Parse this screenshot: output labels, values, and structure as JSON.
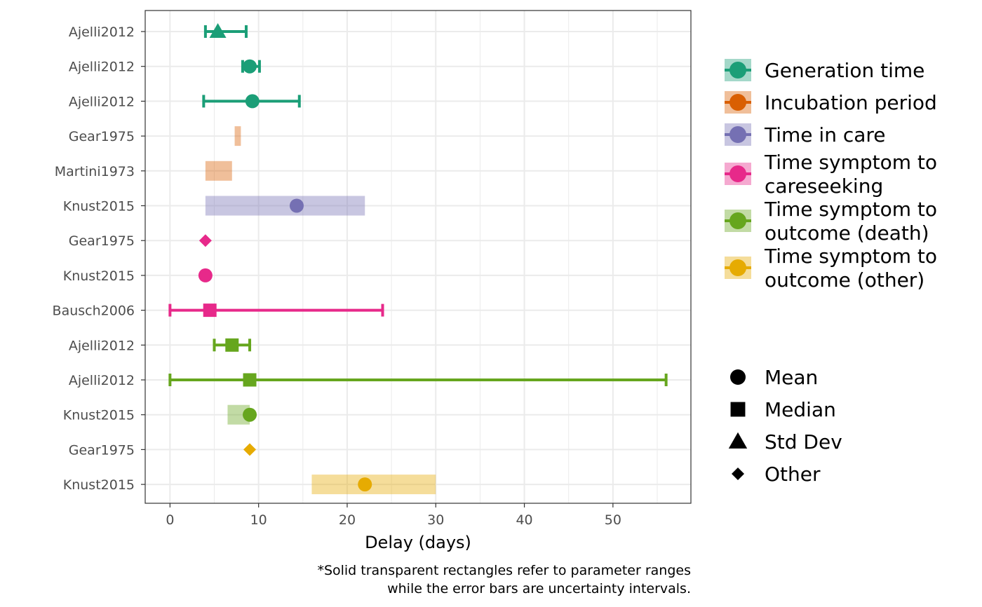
{
  "chart_data": {
    "type": "scatter",
    "xlabel": "Delay (days)",
    "xlim": [
      -2.8,
      58.8
    ],
    "xticks": [
      0,
      10,
      20,
      30,
      40,
      50
    ],
    "grid": true,
    "legend_position": "right",
    "caption": [
      "*Solid transparent rectangles refer to parameter ranges",
      "while the error bars are uncertainty intervals."
    ],
    "parameter_types": [
      {
        "name": "Generation time",
        "label_lines": [
          "Generation time"
        ],
        "color": "#1b9e77"
      },
      {
        "name": "Incubation period",
        "label_lines": [
          "Incubation period"
        ],
        "color": "#d95f02"
      },
      {
        "name": "Time in care",
        "label_lines": [
          "Time in care"
        ],
        "color": "#7570b3"
      },
      {
        "name": "Time symptom to careseeking",
        "label_lines": [
          "Time symptom to",
          "careseeking"
        ],
        "color": "#e7298a"
      },
      {
        "name": "Time symptom to outcome (death)",
        "label_lines": [
          "Time symptom to",
          "outcome (death)"
        ],
        "color": "#66a61e"
      },
      {
        "name": "Time symptom to outcome (other)",
        "label_lines": [
          "Time symptom to",
          "outcome (other)"
        ],
        "color": "#e6ab02"
      }
    ],
    "value_types": [
      {
        "name": "Mean",
        "shape": "circle"
      },
      {
        "name": "Median",
        "shape": "square"
      },
      {
        "name": "Std Dev",
        "shape": "triangle"
      },
      {
        "name": "Other",
        "shape": "diamond"
      }
    ],
    "rows": [
      {
        "label": "Ajelli2012",
        "type": "Generation time",
        "value": 5.4,
        "value_type": "Std Dev",
        "unc": [
          4.0,
          8.6
        ],
        "range": null
      },
      {
        "label": "Ajelli2012",
        "type": "Generation time",
        "value": 9.0,
        "value_type": "Mean",
        "unc": [
          8.2,
          10.1
        ],
        "range": null
      },
      {
        "label": "Ajelli2012",
        "type": "Generation time",
        "value": 9.3,
        "value_type": "Mean",
        "unc": [
          3.8,
          14.6
        ],
        "range": null
      },
      {
        "label": "Gear1975",
        "type": "Incubation period",
        "value": null,
        "value_type": null,
        "unc": null,
        "range": [
          7.3,
          8.0
        ]
      },
      {
        "label": "Martini1973",
        "type": "Incubation period",
        "value": null,
        "value_type": null,
        "unc": null,
        "range": [
          4.0,
          7.0
        ]
      },
      {
        "label": "Knust2015",
        "type": "Time in care",
        "value": 14.3,
        "value_type": "Mean",
        "unc": null,
        "range": [
          4.0,
          22.0
        ]
      },
      {
        "label": "Gear1975",
        "type": "Time symptom to careseeking",
        "value": 4.0,
        "value_type": "Other",
        "unc": null,
        "range": null
      },
      {
        "label": "Knust2015",
        "type": "Time symptom to careseeking",
        "value": 4.0,
        "value_type": "Mean",
        "unc": null,
        "range": null
      },
      {
        "label": "Bausch2006",
        "type": "Time symptom to careseeking",
        "value": 4.5,
        "value_type": "Median",
        "unc": [
          0.0,
          24.0
        ],
        "range": null
      },
      {
        "label": "Ajelli2012",
        "type": "Time symptom to outcome (death)",
        "value": 7.0,
        "value_type": "Median",
        "unc": [
          5.0,
          9.0
        ],
        "range": null
      },
      {
        "label": "Ajelli2012",
        "type": "Time symptom to outcome (death)",
        "value": 9.0,
        "value_type": "Median",
        "unc": [
          0.0,
          56.0
        ],
        "range": null
      },
      {
        "label": "Knust2015",
        "type": "Time symptom to outcome (death)",
        "value": 9.0,
        "value_type": "Mean",
        "unc": null,
        "range": [
          6.5,
          9.0
        ]
      },
      {
        "label": "Gear1975",
        "type": "Time symptom to outcome (other)",
        "value": 9.0,
        "value_type": "Other",
        "unc": null,
        "range": null
      },
      {
        "label": "Knust2015",
        "type": "Time symptom to outcome (other)",
        "value": 22.0,
        "value_type": "Mean",
        "unc": null,
        "range": [
          16.0,
          30.0
        ]
      }
    ]
  }
}
